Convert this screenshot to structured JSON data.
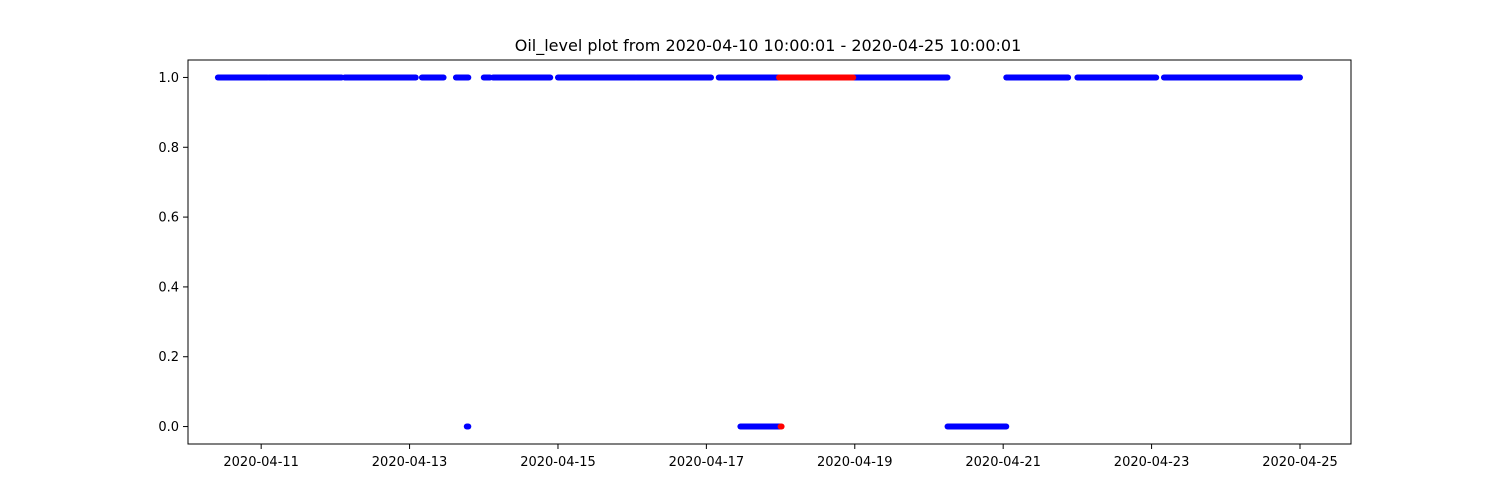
{
  "chart_data": {
    "type": "scatter",
    "title": "Oil_level plot from 2020-04-10 10:00:01 - 2020-04-25 10:00:01",
    "xlabel": "",
    "ylabel": "",
    "xlim": [
      "2020-04-10T00:20:00",
      "2020-04-25T16:30:00"
    ],
    "ylim": [
      -0.05,
      1.05
    ],
    "grid": false,
    "legend": "none",
    "x_ticks": [
      {
        "value": "2020-04-11",
        "label": "2020-04-11"
      },
      {
        "value": "2020-04-13",
        "label": "2020-04-13"
      },
      {
        "value": "2020-04-15",
        "label": "2020-04-15"
      },
      {
        "value": "2020-04-17",
        "label": "2020-04-17"
      },
      {
        "value": "2020-04-19",
        "label": "2020-04-19"
      },
      {
        "value": "2020-04-21",
        "label": "2020-04-21"
      },
      {
        "value": "2020-04-23",
        "label": "2020-04-23"
      },
      {
        "value": "2020-04-25",
        "label": "2020-04-25"
      }
    ],
    "y_ticks": [
      {
        "value": 0.0,
        "label": "0.0"
      },
      {
        "value": 0.2,
        "label": "0.2"
      },
      {
        "value": 0.4,
        "label": "0.4"
      },
      {
        "value": 0.6,
        "label": "0.6"
      },
      {
        "value": 0.8,
        "label": "0.8"
      },
      {
        "value": 1.0,
        "label": "1.0"
      }
    ],
    "colors": {
      "normal": "#0000ff",
      "anomaly": "#ff0000"
    },
    "series": [
      {
        "color_key": "normal",
        "segments": [
          {
            "start": "2020-04-10T10:00:00",
            "end": "2020-04-11T02:00:00",
            "y": 1.0
          },
          {
            "start": "2020-04-11T02:30:00",
            "end": "2020-04-12T02:00:00",
            "y": 1.0
          },
          {
            "start": "2020-04-12T03:00:00",
            "end": "2020-04-13T02:00:00",
            "y": 1.0
          },
          {
            "start": "2020-04-13T04:00:00",
            "end": "2020-04-13T11:00:00",
            "y": 1.0
          },
          {
            "start": "2020-04-13T15:00:00",
            "end": "2020-04-13T19:00:00",
            "y": 1.0
          },
          {
            "start": "2020-04-14T00:00:00",
            "end": "2020-04-14T02:00:00",
            "y": 1.0
          },
          {
            "start": "2020-04-14T03:00:00",
            "end": "2020-04-14T21:30:00",
            "y": 1.0
          },
          {
            "start": "2020-04-15T00:00:00",
            "end": "2020-04-16T01:00:00",
            "y": 1.0
          },
          {
            "start": "2020-04-16T01:30:00",
            "end": "2020-04-17T01:30:00",
            "y": 1.0
          },
          {
            "start": "2020-04-17T04:00:00",
            "end": "2020-04-17T23:30:00",
            "y": 1.0
          },
          {
            "start": "2020-04-18T23:30:00",
            "end": "2020-04-20T06:00:00",
            "y": 1.0
          },
          {
            "start": "2020-04-21T01:00:00",
            "end": "2020-04-21T21:00:00",
            "y": 1.0
          },
          {
            "start": "2020-04-22T00:00:00",
            "end": "2020-04-23T01:30:00",
            "y": 1.0
          },
          {
            "start": "2020-04-23T04:00:00",
            "end": "2020-04-25T00:00:00",
            "y": 1.0
          },
          {
            "start": "2020-04-13T18:30:00",
            "end": "2020-04-13T19:00:00",
            "y": 0.0
          },
          {
            "start": "2020-04-17T11:00:00",
            "end": "2020-04-18T00:00:00",
            "y": 0.0
          },
          {
            "start": "2020-04-20T06:00:00",
            "end": "2020-04-21T01:00:00",
            "y": 0.0
          }
        ]
      },
      {
        "color_key": "anomaly",
        "segments": [
          {
            "start": "2020-04-17T23:30:00",
            "end": "2020-04-18T23:30:00",
            "y": 1.0
          },
          {
            "start": "2020-04-18T00:00:00",
            "end": "2020-04-18T00:20:00",
            "y": 0.0
          }
        ]
      }
    ]
  }
}
